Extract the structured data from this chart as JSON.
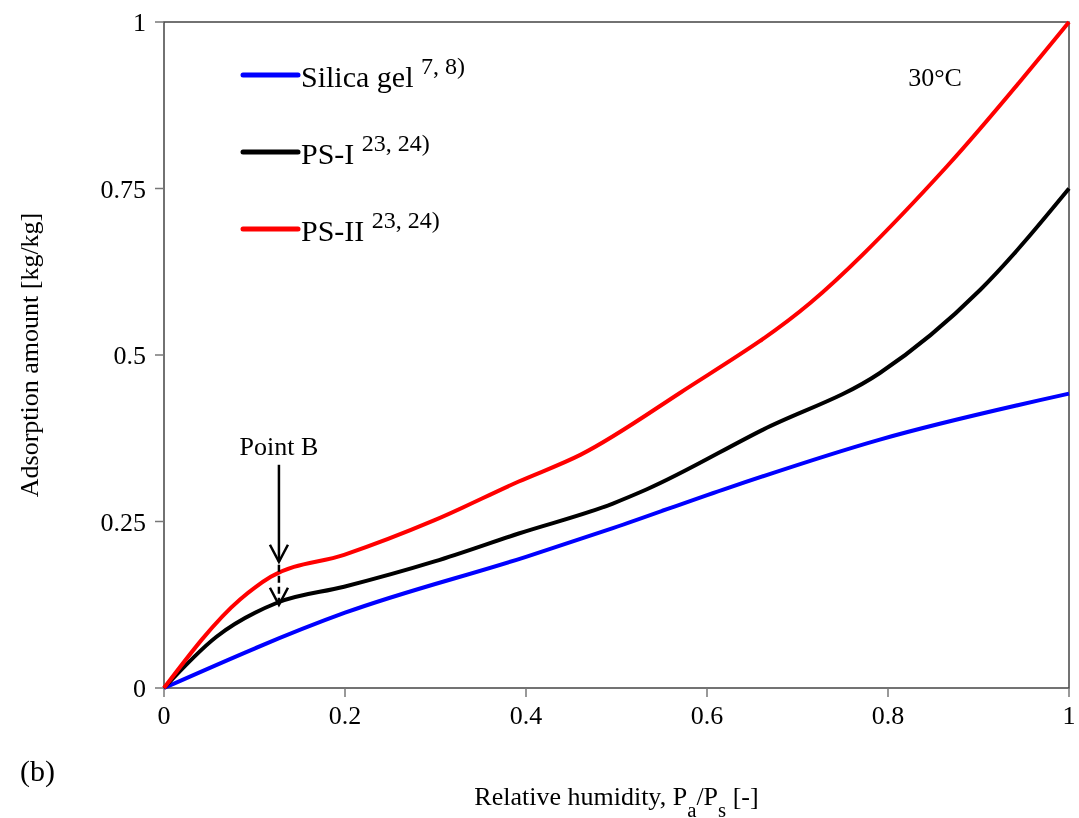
{
  "chart_data": {
    "type": "line",
    "xlabel": "Relative humidity, P$_{a}$/P$_{s}$ [-]",
    "ylabel": "Adsorption amount [kg/kg]",
    "xlim": [
      0,
      1
    ],
    "ylim": [
      0,
      1
    ],
    "xticks": [
      0,
      0.2,
      0.4,
      0.6,
      0.8,
      1
    ],
    "yticks": [
      0,
      0.25,
      0.5,
      0.75,
      1
    ],
    "grid": false,
    "legend": "top left",
    "marker": "none",
    "line_style": "solid",
    "series": [
      {
        "name": "Silica gel $^{7, 8)}$",
        "color": "#0000ff",
        "x": [
          0,
          0.2,
          0.4,
          0.496,
          0.618,
          0.791,
          1
        ],
        "values": [
          0,
          0.113,
          0.197,
          0.24,
          0.298,
          0.373,
          0.442
        ]
      },
      {
        "name": "PS-I $^{23, 24)}$",
        "color": "#000000",
        "x": [
          0,
          0.058,
          0.125,
          0.199,
          0.299,
          0.392,
          0.496,
          0.533,
          0.662,
          0.791,
          0.902,
          1
        ],
        "values": [
          0,
          0.077,
          0.128,
          0.152,
          0.19,
          0.232,
          0.277,
          0.298,
          0.388,
          0.473,
          0.598,
          0.75
        ]
      },
      {
        "name": "PS-II $^{23, 24)}$",
        "color": "#ff0000",
        "x": [
          0,
          0.084,
          0.118,
          0.199,
          0.299,
          0.392,
          0.46,
          0.57,
          0.714,
          0.865,
          1
        ],
        "values": [
          0,
          0.133,
          0.167,
          0.2,
          0.252,
          0.31,
          0.35,
          0.443,
          0.578,
          0.783,
          1
        ]
      }
    ],
    "annotations": [
      "Point B",
      "30°C",
      "(b)"
    ]
  }
}
